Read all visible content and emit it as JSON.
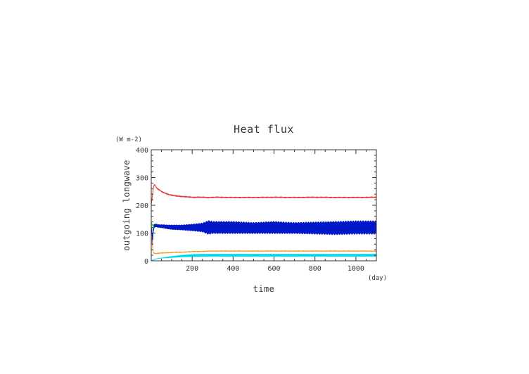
{
  "chart_data": {
    "type": "line",
    "title": "Heat flux",
    "xlabel": "time",
    "ylabel": "outgoing longwave",
    "x_unit": "(day)",
    "y_unit": "(W m-2)",
    "xlim": [
      0,
      1100
    ],
    "ylim": [
      0,
      400
    ],
    "x_ticks": [
      200,
      400,
      600,
      800,
      1000
    ],
    "x_tick_labels": [
      "200",
      "400",
      "600",
      "800",
      "1000"
    ],
    "y_ticks": [
      0,
      100,
      200,
      300,
      400
    ],
    "y_tick_labels": [
      "0",
      "100",
      "200",
      "300",
      "400"
    ],
    "grid": false,
    "legend": "none",
    "series": [
      {
        "color": "#e83030",
        "x": [
          0,
          5,
          10,
          15,
          20,
          25,
          30,
          35,
          40,
          50,
          60,
          80,
          100,
          130,
          160,
          200,
          240,
          280,
          320,
          400,
          500,
          600,
          700,
          800,
          900,
          1000,
          1100
        ],
        "y": [
          200,
          230,
          262,
          274,
          270,
          264,
          260,
          257,
          255,
          250,
          246,
          240,
          236,
          233,
          231,
          229,
          229,
          228,
          229,
          228,
          228,
          229,
          228,
          229,
          228,
          228,
          229
        ],
        "noise": 2
      },
      {
        "color": "#0018c8",
        "x": [
          0,
          5,
          10,
          15,
          20,
          30,
          40,
          60,
          80,
          100,
          150,
          200,
          250,
          280,
          300,
          400,
          500,
          600,
          700,
          800,
          900,
          1000,
          1100
        ],
        "y": [
          130,
          70,
          115,
          125,
          128,
          126,
          125,
          124,
          122,
          121,
          120,
          120,
          120,
          120,
          120,
          120,
          118,
          120,
          118,
          118,
          118,
          120,
          120
        ],
        "amplitude": [
          0,
          20,
          10,
          6,
          5,
          5,
          5,
          6,
          7,
          8,
          9,
          12,
          16,
          25,
          22,
          22,
          20,
          22,
          20,
          22,
          24,
          24,
          24
        ]
      },
      {
        "color": "#28d828",
        "x": [
          0,
          2,
          4,
          6,
          8,
          10,
          12,
          14
        ],
        "y": [
          125,
          135,
          128,
          132,
          126,
          130,
          122,
          115
        ]
      },
      {
        "color": "#f0a020",
        "x": [
          0,
          5,
          10,
          15,
          20,
          30,
          50,
          75,
          100,
          150,
          200,
          250,
          300,
          400,
          500,
          600,
          700,
          800,
          900,
          1000,
          1100
        ],
        "y": [
          100,
          60,
          30,
          27,
          26,
          27,
          28,
          29,
          30,
          31,
          33,
          34,
          35,
          35,
          35,
          35,
          35,
          35,
          35,
          35,
          35
        ],
        "noise": 1.5
      },
      {
        "color": "#00d8f0",
        "x": [
          0,
          5,
          10,
          15,
          20,
          30,
          50,
          75,
          100,
          150,
          200,
          250,
          300,
          400,
          500,
          600,
          700,
          800,
          900,
          1000,
          1100
        ],
        "y": [
          0,
          2,
          4,
          5,
          6,
          8,
          10,
          12,
          14,
          17,
          19,
          20,
          20,
          20,
          20,
          20,
          20,
          20,
          20,
          20,
          20
        ],
        "amplitude": [
          0,
          0,
          0,
          0,
          0,
          0,
          0,
          1,
          2,
          3,
          4,
          4,
          4,
          4,
          4,
          4,
          4,
          4,
          4,
          4,
          4
        ]
      }
    ]
  }
}
